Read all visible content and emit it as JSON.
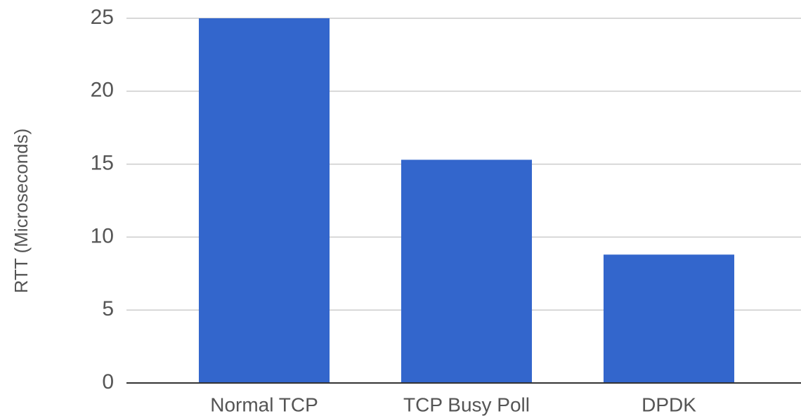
{
  "chart_data": {
    "type": "bar",
    "y_label": "RTT (Microseconds)",
    "categories": [
      "Normal TCP",
      "TCP Busy Poll",
      "DPDK"
    ],
    "values": [
      25,
      15.3,
      8.8
    ],
    "color": "#3366cc",
    "ylim": [
      0,
      25
    ],
    "yticks": [
      0,
      5,
      10,
      15,
      20,
      25
    ],
    "grid": true
  }
}
